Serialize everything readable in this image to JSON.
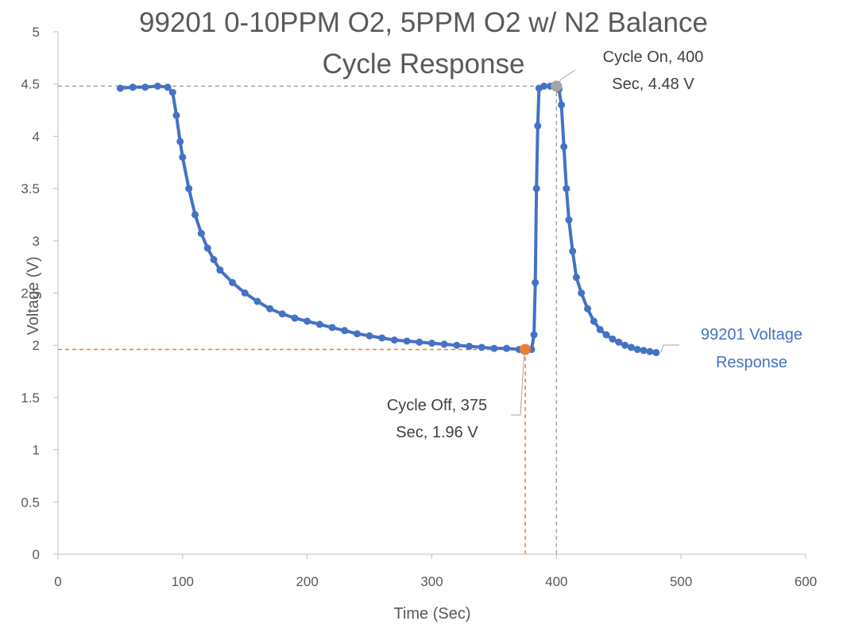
{
  "chart_data": {
    "type": "scatter",
    "title_lines": [
      "99201 0-10PPM O2, 5PPM O2 w/ N2 Balance",
      "Cycle Response"
    ],
    "xlabel": "Time (Sec)",
    "ylabel": "Voltage (V)",
    "xlim": [
      0,
      600
    ],
    "ylim": [
      0,
      5
    ],
    "x_ticks": [
      0,
      100,
      200,
      300,
      400,
      500,
      600
    ],
    "y_ticks": [
      0,
      0.5,
      1,
      1.5,
      2,
      2.5,
      3,
      3.5,
      4,
      4.5,
      5
    ],
    "y_tick_labels": [
      "0",
      "0.5",
      "1",
      "1.5",
      "2",
      "2.5",
      "3",
      "3.5",
      "4",
      "4.5",
      "5"
    ],
    "grid": false,
    "legend": "none",
    "series": [
      {
        "name": "99201 Voltage Response",
        "color": "#4472C4",
        "x": [
          50,
          60,
          70,
          80,
          88,
          92,
          95,
          98,
          100,
          105,
          110,
          115,
          120,
          125,
          130,
          140,
          150,
          160,
          170,
          180,
          190,
          200,
          210,
          220,
          230,
          240,
          250,
          260,
          270,
          280,
          290,
          300,
          310,
          320,
          330,
          340,
          350,
          360,
          370,
          375,
          380,
          382,
          383,
          384,
          385,
          386,
          390,
          395,
          400,
          402,
          404,
          406,
          408,
          410,
          413,
          416,
          420,
          425,
          430,
          435,
          440,
          445,
          450,
          455,
          460,
          465,
          470,
          475,
          480
        ],
        "y": [
          4.46,
          4.47,
          4.47,
          4.48,
          4.47,
          4.42,
          4.2,
          3.95,
          3.8,
          3.5,
          3.25,
          3.07,
          2.93,
          2.82,
          2.72,
          2.6,
          2.5,
          2.42,
          2.35,
          2.3,
          2.26,
          2.23,
          2.2,
          2.17,
          2.14,
          2.11,
          2.09,
          2.07,
          2.05,
          2.04,
          2.03,
          2.02,
          2.01,
          2.0,
          1.99,
          1.98,
          1.97,
          1.97,
          1.96,
          1.96,
          1.96,
          2.1,
          2.6,
          3.5,
          4.1,
          4.46,
          4.48,
          4.48,
          4.48,
          4.45,
          4.3,
          3.9,
          3.5,
          3.2,
          2.9,
          2.65,
          2.5,
          2.35,
          2.23,
          2.15,
          2.1,
          2.06,
          2.03,
          2.0,
          1.98,
          1.96,
          1.95,
          1.94,
          1.93
        ]
      }
    ],
    "reference_lines": [
      {
        "orientation": "horizontal",
        "y": 4.48,
        "x_from": 0,
        "x_to": 400,
        "color": "#A5A5A5"
      },
      {
        "orientation": "vertical",
        "x": 400,
        "y_from": 0,
        "y_to": 4.48,
        "color": "#A5A5A5"
      },
      {
        "orientation": "horizontal",
        "y": 1.96,
        "x_from": 0,
        "x_to": 375,
        "color": "#ED7D31"
      },
      {
        "orientation": "vertical",
        "x": 375,
        "y_from": 0,
        "y_to": 1.96,
        "color": "#ED7D31"
      }
    ],
    "highlighted_points": [
      {
        "x": 400,
        "y": 4.48,
        "color": "#A5A5A5",
        "label_lines": [
          "Cycle On, 400",
          "Sec, 4.48 V"
        ]
      },
      {
        "x": 375,
        "y": 1.96,
        "color": "#ED7D31",
        "label_lines": [
          "Cycle Off, 375",
          "Sec, 1.96 V"
        ]
      }
    ],
    "series_label_lines": [
      "99201 Voltage",
      "Response"
    ]
  }
}
